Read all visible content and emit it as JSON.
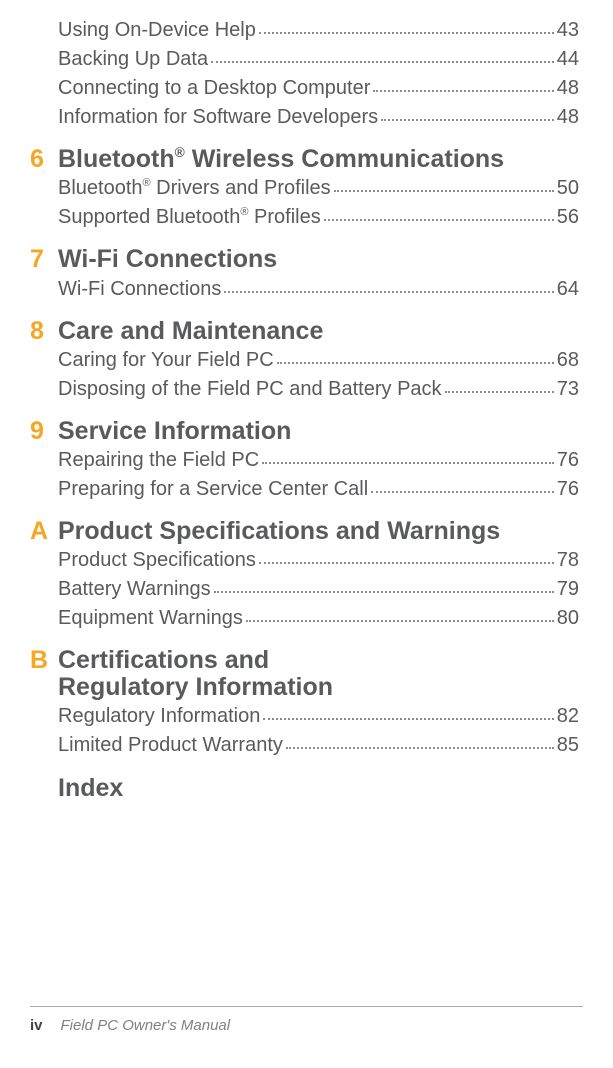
{
  "orphan_entries": [
    {
      "text": "Using On-Device Help",
      "page": "43"
    },
    {
      "text": "Backing Up Data",
      "page": "44"
    },
    {
      "text": "Connecting to a Desktop Computer",
      "page": "48"
    },
    {
      "text": "Information for Software Developers",
      "page": "48"
    }
  ],
  "sections": [
    {
      "num": "6",
      "title_pre": "Bluetooth",
      "title_sup": "®",
      "title_post": " Wireless Communications",
      "entries": [
        {
          "pre": "Bluetooth",
          "sup": "®",
          "post": " Drivers and Profiles",
          "page": "50"
        },
        {
          "pre": "Supported Bluetooth",
          "sup": "®",
          "post": " Profiles",
          "page": "56"
        }
      ]
    },
    {
      "num": "7",
      "title": "Wi-Fi Connections",
      "entries": [
        {
          "text": "Wi-Fi Connections",
          "page": "64"
        }
      ]
    },
    {
      "num": "8",
      "title": "Care and Maintenance",
      "entries": [
        {
          "text": "Caring for Your Field PC",
          "page": "68"
        },
        {
          "text": "Disposing of the Field PC and Battery Pack",
          "page": "73"
        }
      ]
    },
    {
      "num": "9",
      "title": "Service Information",
      "entries": [
        {
          "text": "Repairing the Field PC",
          "page": "76"
        },
        {
          "text": "Preparing for a Service Center Call",
          "page": "76"
        }
      ]
    },
    {
      "num": "A",
      "title": "Product Specifications and Warnings",
      "entries": [
        {
          "text": "Product Specifications",
          "page": "78"
        },
        {
          "text": "Battery Warnings",
          "page": "79"
        },
        {
          "text": "Equipment Warnings",
          "page": "80"
        }
      ]
    },
    {
      "num": "B",
      "title_lines": [
        "Certifications and",
        "Regulatory Information"
      ],
      "entries": [
        {
          "text": "Regulatory Information",
          "page": "82"
        },
        {
          "text": "Limited Product Warranty",
          "page": "85"
        }
      ]
    }
  ],
  "index_label": "Index",
  "footer": {
    "page": "iv",
    "title": "Field PC Owner's Manual"
  },
  "colors": {
    "accent": "#f6a722",
    "text": "#595a5c",
    "footer_rule": "#a9aaac",
    "footer_title": "#808184"
  }
}
